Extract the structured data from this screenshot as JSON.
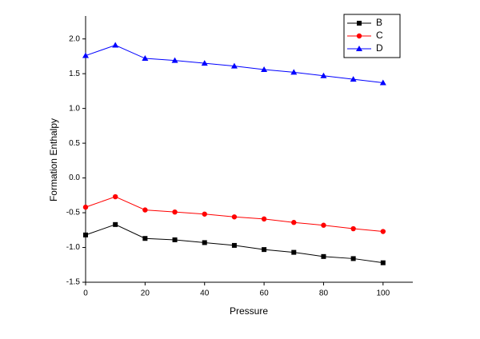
{
  "chart_data": {
    "type": "line",
    "x_label": "Pressure",
    "y_label": "Formation Enthalpy",
    "x": [
      0,
      10,
      20,
      30,
      40,
      50,
      60,
      70,
      80,
      90,
      100
    ],
    "series": [
      {
        "name": "B",
        "color": "#000000",
        "marker": "square",
        "values": [
          -0.82,
          -0.67,
          -0.87,
          -0.89,
          -0.93,
          -0.97,
          -1.03,
          -1.07,
          -1.13,
          -1.16,
          -1.22
        ]
      },
      {
        "name": "C",
        "color": "#ff0000",
        "marker": "circle",
        "values": [
          -0.42,
          -0.27,
          -0.46,
          -0.49,
          -0.52,
          -0.56,
          -0.59,
          -0.64,
          -0.68,
          -0.73,
          -0.77
        ]
      },
      {
        "name": "D",
        "color": "#0000ff",
        "marker": "triangle",
        "values": [
          1.76,
          1.91,
          1.72,
          1.69,
          1.65,
          1.61,
          1.56,
          1.52,
          1.47,
          1.42,
          1.37
        ]
      }
    ],
    "xlim": [
      0,
      110
    ],
    "xticks": [
      0,
      20,
      40,
      60,
      80,
      100
    ],
    "ylim": [
      -1.5,
      2.33
    ],
    "yticks": [
      -1.5,
      {
        "value": -1,
        "label": "-1.0"
      },
      -0.5,
      {
        "value": 0,
        "label": "0.0"
      },
      0.5,
      {
        "value": 1,
        "label": "1.0"
      },
      1.5,
      {
        "value": 2,
        "label": "2.0"
      }
    ],
    "legend": "top-right"
  }
}
